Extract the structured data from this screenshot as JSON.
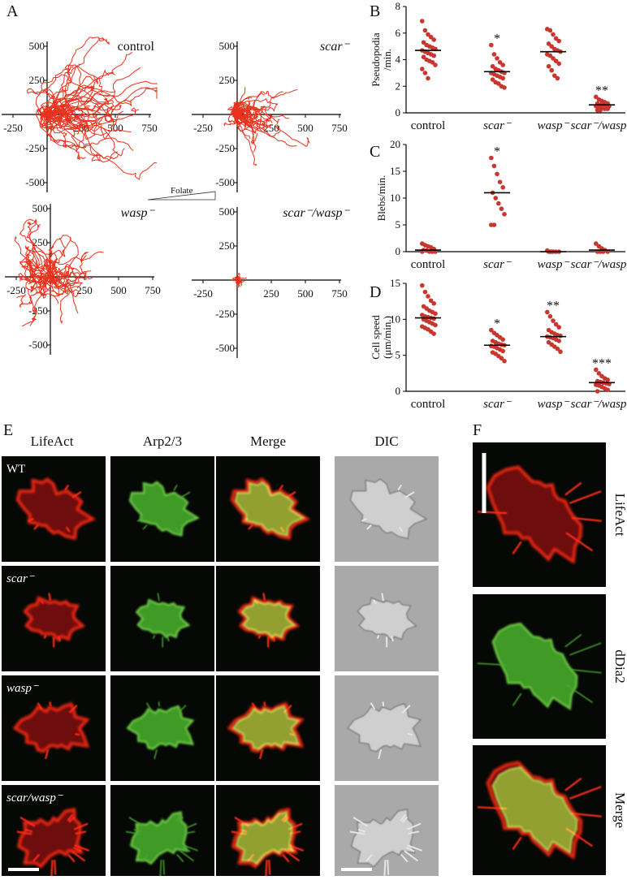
{
  "panel_labels": [
    "A",
    "B",
    "C",
    "D",
    "E",
    "F"
  ],
  "panel_a": {
    "titles": [
      "control",
      "scar⁻",
      "wasp⁻",
      "scar⁻/wasp⁻"
    ],
    "xticks": [
      -250,
      250,
      500,
      750
    ],
    "yticks": [
      500,
      250,
      -250,
      -500
    ],
    "gradient_label": "Folate"
  },
  "chart_data": [
    {
      "type": "dot",
      "y_label": [
        "Pseudopodia",
        "/min."
      ],
      "categories": [
        "control",
        "scar⁻",
        "wasp⁻",
        "scar⁻/wasp⁻"
      ],
      "ylim": [
        0,
        8
      ],
      "yticks": [
        0,
        2,
        4,
        6,
        8
      ],
      "color": "#c8362e",
      "points": [
        [
          6.9,
          6.2,
          5.9,
          5.7,
          5.5,
          5.3,
          5.1,
          5.0,
          4.9,
          4.8,
          4.7,
          4.6,
          4.5,
          4.4,
          4.3,
          4.2,
          4.0,
          3.9,
          3.8,
          3.6,
          3.3,
          3.0,
          2.6
        ],
        [
          5.1,
          4.4,
          4.1,
          3.8,
          3.6,
          3.5,
          3.3,
          3.2,
          3.1,
          3.0,
          3.0,
          2.9,
          2.8,
          2.7,
          2.6,
          2.5,
          2.3,
          2.2,
          2.0,
          1.9
        ],
        [
          6.3,
          6.2,
          5.9,
          5.6,
          5.4,
          5.2,
          5.0,
          4.8,
          4.7,
          4.6,
          4.4,
          4.3,
          4.1,
          3.9,
          3.7,
          3.5,
          3.2,
          2.8,
          2.6
        ],
        [
          1.2,
          1.0,
          0.9,
          0.8,
          0.7,
          0.7,
          0.6,
          0.6,
          0.5,
          0.5,
          0.5,
          0.4,
          0.4,
          0.3,
          0.3,
          0.2,
          0.2
        ]
      ],
      "means": [
        4.7,
        3.1,
        4.6,
        0.6
      ],
      "significance": [
        null,
        "*",
        null,
        "**"
      ]
    },
    {
      "type": "dot",
      "y_label": [
        "Blebs/min."
      ],
      "categories": [
        "control",
        "scar⁻",
        "wasp⁻",
        "scar⁻/wasp⁻"
      ],
      "ylim": [
        0,
        20
      ],
      "yticks": [
        0,
        5,
        10,
        15,
        20
      ],
      "color": "#c8362e",
      "points": [
        [
          1.5,
          1.2,
          1.0,
          0.8,
          0.5,
          0.3,
          0.2,
          0,
          0,
          0,
          0
        ],
        [
          17.5,
          16,
          14.5,
          13,
          12,
          11,
          10,
          9,
          8,
          7,
          5,
          5
        ],
        [
          0.2,
          0,
          0,
          0,
          0,
          0,
          0
        ],
        [
          1.5,
          1,
          0.6,
          0.3,
          0,
          0,
          0,
          0
        ]
      ],
      "means": [
        0.3,
        11,
        0,
        0.3
      ],
      "significance": [
        null,
        "*",
        null,
        null
      ]
    },
    {
      "type": "dot",
      "y_label": [
        "Cell speed",
        "(μm/min.)"
      ],
      "categories": [
        "control",
        "scar⁻",
        "wasp⁻",
        "scar⁻/wasp⁻"
      ],
      "ylim": [
        0,
        15
      ],
      "yticks": [
        0,
        5,
        10,
        15
      ],
      "color": "#c8362e",
      "points": [
        [
          14.7,
          13.8,
          13.2,
          12.6,
          12.2,
          11.8,
          11.5,
          11.2,
          11.0,
          10.8,
          10.6,
          10.4,
          10.3,
          10.2,
          10.1,
          10.0,
          9.8,
          9.6,
          9.4,
          9.2,
          9.0,
          8.8,
          8.6,
          8.3,
          8.0
        ],
        [
          8.5,
          8.1,
          7.8,
          7.5,
          7.2,
          7.0,
          6.8,
          6.6,
          6.5,
          6.4,
          6.3,
          6.2,
          6.0,
          5.8,
          5.6,
          5.4,
          5.2,
          4.9,
          4.6,
          4.2
        ],
        [
          11.0,
          10.4,
          9.8,
          9.3,
          8.9,
          8.5,
          8.2,
          8.0,
          7.8,
          7.7,
          7.6,
          7.5,
          7.4,
          7.2,
          7.0,
          6.8,
          6.5,
          6.2,
          5.9,
          5.5
        ],
        [
          3.0,
          2.5,
          2.1,
          1.8,
          1.6,
          1.4,
          1.3,
          1.2,
          1.1,
          1.0,
          0.9,
          0.8,
          0.6,
          0.4,
          0.2,
          0
        ]
      ],
      "means": [
        10.2,
        6.4,
        7.6,
        1.2
      ],
      "significance": [
        null,
        "*",
        "**",
        "***"
      ]
    }
  ],
  "panel_e": {
    "columns": [
      "LifeAct",
      "Arp2/3",
      "Merge",
      "DIC"
    ],
    "rows": [
      "WT",
      "scar⁻",
      "wasp⁻",
      "scar/wasp⁻"
    ]
  },
  "panel_f": {
    "rows": [
      "LifeAct",
      "dDia2",
      "Merge"
    ]
  }
}
